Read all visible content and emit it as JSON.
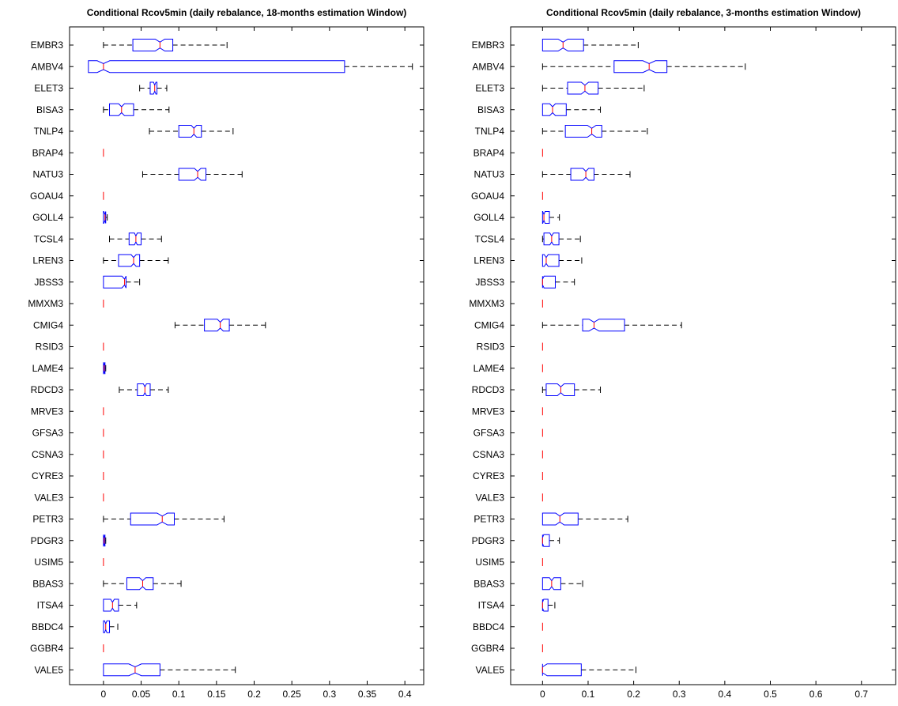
{
  "chart_data": [
    {
      "type": "boxplot",
      "orientation": "horizontal",
      "title": "Conditional Rcov5min (daily rebalance, 18-months estimation Window)",
      "xlim": [
        -0.045,
        0.425
      ],
      "xticks": [
        0,
        0.05,
        0.1,
        0.15,
        0.2,
        0.25,
        0.3,
        0.35,
        0.4
      ],
      "xtick_labels": [
        "0",
        "0.05",
        "0.1",
        "0.15",
        "0.2",
        "0.25",
        "0.3",
        "0.35",
        "0.4"
      ],
      "notched": true,
      "categories": [
        "EMBR3",
        "AMBV4",
        "ELET3",
        "BISA3",
        "TNLP4",
        "BRAP4",
        "NATU3",
        "GOAU4",
        "GOLL4",
        "TCSL4",
        "LREN3",
        "JBSS3",
        "MMXM3",
        "CMIG4",
        "RSID3",
        "LAME4",
        "RDCD3",
        "MRVE3",
        "GFSA3",
        "CSNA3",
        "CYRE3",
        "VALE3",
        "PETR3",
        "PDGR3",
        "USIM5",
        "BBAS3",
        "ITSA4",
        "BBDC4",
        "GGBR4",
        "VALE5"
      ],
      "boxes": [
        {
          "min": 0.0,
          "q1": 0.039,
          "median": 0.075,
          "q3": 0.092,
          "max": 0.164
        },
        {
          "min": -0.02,
          "q1": -0.02,
          "median": 0.0,
          "q3": 0.32,
          "max": 0.41
        },
        {
          "min": 0.048,
          "q1": 0.062,
          "median": 0.068,
          "q3": 0.071,
          "max": 0.084
        },
        {
          "min": 0.0,
          "q1": 0.008,
          "median": 0.024,
          "q3": 0.04,
          "max": 0.087
        },
        {
          "min": 0.061,
          "q1": 0.1,
          "median": 0.12,
          "q3": 0.13,
          "max": 0.172
        },
        {
          "min": 0.0,
          "q1": 0.0,
          "median": 0.0,
          "q3": 0.0,
          "max": 0.0
        },
        {
          "min": 0.052,
          "q1": 0.1,
          "median": 0.125,
          "q3": 0.136,
          "max": 0.184
        },
        {
          "min": 0.0,
          "q1": 0.0,
          "median": 0.0,
          "q3": 0.0,
          "max": 0.0
        },
        {
          "min": 0.0,
          "q1": 0.0,
          "median": 0.002,
          "q3": 0.003,
          "max": 0.005
        },
        {
          "min": 0.008,
          "q1": 0.034,
          "median": 0.043,
          "q3": 0.05,
          "max": 0.077
        },
        {
          "min": 0.0,
          "q1": 0.02,
          "median": 0.04,
          "q3": 0.048,
          "max": 0.086
        },
        {
          "min": 0.0,
          "q1": 0.0,
          "median": 0.028,
          "q3": 0.03,
          "max": 0.048
        },
        {
          "min": 0.0,
          "q1": 0.0,
          "median": 0.0,
          "q3": 0.0,
          "max": 0.0
        },
        {
          "min": 0.095,
          "q1": 0.134,
          "median": 0.155,
          "q3": 0.167,
          "max": 0.215
        },
        {
          "min": 0.0,
          "q1": 0.0,
          "median": 0.0,
          "q3": 0.0,
          "max": 0.0
        },
        {
          "min": 0.0,
          "q1": 0.0,
          "median": 0.001,
          "q3": 0.002,
          "max": 0.003
        },
        {
          "min": 0.021,
          "q1": 0.045,
          "median": 0.055,
          "q3": 0.062,
          "max": 0.086
        },
        {
          "min": 0.0,
          "q1": 0.0,
          "median": 0.0,
          "q3": 0.0,
          "max": 0.0
        },
        {
          "min": 0.0,
          "q1": 0.0,
          "median": 0.0,
          "q3": 0.0,
          "max": 0.0
        },
        {
          "min": 0.0,
          "q1": 0.0,
          "median": 0.0,
          "q3": 0.0,
          "max": 0.0
        },
        {
          "min": 0.0,
          "q1": 0.0,
          "median": 0.0,
          "q3": 0.0,
          "max": 0.0
        },
        {
          "min": 0.0,
          "q1": 0.0,
          "median": 0.0,
          "q3": 0.0,
          "max": 0.0
        },
        {
          "min": 0.0,
          "q1": 0.036,
          "median": 0.078,
          "q3": 0.094,
          "max": 0.16
        },
        {
          "min": 0.0,
          "q1": 0.0,
          "median": 0.001,
          "q3": 0.002,
          "max": 0.003
        },
        {
          "min": 0.0,
          "q1": 0.0,
          "median": 0.0,
          "q3": 0.0,
          "max": 0.0
        },
        {
          "min": 0.0,
          "q1": 0.031,
          "median": 0.052,
          "q3": 0.066,
          "max": 0.103
        },
        {
          "min": 0.0,
          "q1": 0.0,
          "median": 0.012,
          "q3": 0.02,
          "max": 0.044
        },
        {
          "min": 0.0,
          "q1": 0.0,
          "median": 0.003,
          "q3": 0.008,
          "max": 0.019
        },
        {
          "min": 0.0,
          "q1": 0.0,
          "median": 0.0,
          "q3": 0.0,
          "max": 0.0
        },
        {
          "min": 0.0,
          "q1": 0.0,
          "median": 0.042,
          "q3": 0.075,
          "max": 0.175
        }
      ]
    },
    {
      "type": "boxplot",
      "orientation": "horizontal",
      "title": "Conditional Rcov5min (daily rebalance, 3-months estimation Window)",
      "xlim": [
        -0.07,
        0.775
      ],
      "xticks": [
        0,
        0.1,
        0.2,
        0.3,
        0.4,
        0.5,
        0.6,
        0.7
      ],
      "xtick_labels": [
        "0",
        "0.1",
        "0.2",
        "0.3",
        "0.4",
        "0.5",
        "0.6",
        "0.7"
      ],
      "notched": true,
      "categories": [
        "EMBR3",
        "AMBV4",
        "ELET3",
        "BISA3",
        "TNLP4",
        "BRAP4",
        "NATU3",
        "GOAU4",
        "GOLL4",
        "TCSL4",
        "LREN3",
        "JBSS3",
        "MMXM3",
        "CMIG4",
        "RSID3",
        "LAME4",
        "RDCD3",
        "MRVE3",
        "GFSA3",
        "CSNA3",
        "CYRE3",
        "VALE3",
        "PETR3",
        "PDGR3",
        "USIM5",
        "BBAS3",
        "ITSA4",
        "BBDC4",
        "GGBR4",
        "VALE5"
      ],
      "boxes": [
        {
          "min": 0.0,
          "q1": 0.0,
          "median": 0.045,
          "q3": 0.09,
          "max": 0.21
        },
        {
          "min": 0.0,
          "q1": 0.157,
          "median": 0.234,
          "q3": 0.273,
          "max": 0.445
        },
        {
          "min": 0.0,
          "q1": 0.055,
          "median": 0.093,
          "q3": 0.122,
          "max": 0.223
        },
        {
          "min": 0.0,
          "q1": 0.0,
          "median": 0.022,
          "q3": 0.052,
          "max": 0.127
        },
        {
          "min": 0.0,
          "q1": 0.05,
          "median": 0.108,
          "q3": 0.13,
          "max": 0.23
        },
        {
          "min": 0.0,
          "q1": 0.0,
          "median": 0.0,
          "q3": 0.0,
          "max": 0.0
        },
        {
          "min": 0.0,
          "q1": 0.062,
          "median": 0.095,
          "q3": 0.113,
          "max": 0.192
        },
        {
          "min": 0.0,
          "q1": 0.0,
          "median": 0.0,
          "q3": 0.0,
          "max": 0.0
        },
        {
          "min": 0.0,
          "q1": 0.0,
          "median": 0.003,
          "q3": 0.015,
          "max": 0.037
        },
        {
          "min": 0.0,
          "q1": 0.003,
          "median": 0.02,
          "q3": 0.036,
          "max": 0.083
        },
        {
          "min": 0.0,
          "q1": 0.0,
          "median": 0.008,
          "q3": 0.036,
          "max": 0.086
        },
        {
          "min": 0.0,
          "q1": 0.0,
          "median": 0.0,
          "q3": 0.028,
          "max": 0.07
        },
        {
          "min": 0.0,
          "q1": 0.0,
          "median": 0.0,
          "q3": 0.0,
          "max": 0.0
        },
        {
          "min": 0.0,
          "q1": 0.088,
          "median": 0.113,
          "q3": 0.18,
          "max": 0.305
        },
        {
          "min": 0.0,
          "q1": 0.0,
          "median": 0.0,
          "q3": 0.0,
          "max": 0.0
        },
        {
          "min": 0.0,
          "q1": 0.0,
          "median": 0.0,
          "q3": 0.0,
          "max": 0.0
        },
        {
          "min": 0.0,
          "q1": 0.008,
          "median": 0.04,
          "q3": 0.07,
          "max": 0.127
        },
        {
          "min": 0.0,
          "q1": 0.0,
          "median": 0.0,
          "q3": 0.0,
          "max": 0.0
        },
        {
          "min": 0.0,
          "q1": 0.0,
          "median": 0.0,
          "q3": 0.0,
          "max": 0.0
        },
        {
          "min": 0.0,
          "q1": 0.0,
          "median": 0.0,
          "q3": 0.0,
          "max": 0.0
        },
        {
          "min": 0.0,
          "q1": 0.0,
          "median": 0.0,
          "q3": 0.0,
          "max": 0.0
        },
        {
          "min": 0.0,
          "q1": 0.0,
          "median": 0.0,
          "q3": 0.0,
          "max": 0.0
        },
        {
          "min": 0.0,
          "q1": 0.0,
          "median": 0.038,
          "q3": 0.078,
          "max": 0.187
        },
        {
          "min": 0.0,
          "q1": 0.0,
          "median": 0.0,
          "q3": 0.015,
          "max": 0.037
        },
        {
          "min": 0.0,
          "q1": 0.0,
          "median": 0.0,
          "q3": 0.0,
          "max": 0.0
        },
        {
          "min": 0.0,
          "q1": 0.0,
          "median": 0.02,
          "q3": 0.04,
          "max": 0.088
        },
        {
          "min": 0.0,
          "q1": 0.0,
          "median": 0.0,
          "q3": 0.012,
          "max": 0.027
        },
        {
          "min": 0.0,
          "q1": 0.0,
          "median": 0.0,
          "q3": 0.0,
          "max": 0.0
        },
        {
          "min": 0.0,
          "q1": 0.0,
          "median": 0.0,
          "q3": 0.0,
          "max": 0.0
        },
        {
          "min": 0.0,
          "q1": 0.0,
          "median": 0.0,
          "q3": 0.085,
          "max": 0.205
        }
      ]
    }
  ],
  "colors": {
    "box": "#0000ff",
    "median": "#ff0000",
    "whisker": "#000000",
    "axis": "#000000",
    "background": "#ffffff"
  }
}
